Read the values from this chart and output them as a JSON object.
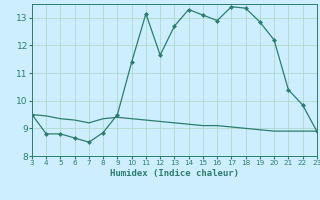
{
  "x_values": [
    3,
    4,
    5,
    6,
    7,
    8,
    9,
    10,
    11,
    12,
    13,
    14,
    15,
    16,
    17,
    18,
    19,
    20,
    21,
    22,
    23
  ],
  "line1_y": [
    9.5,
    8.8,
    8.8,
    8.65,
    8.5,
    8.85,
    9.5,
    11.4,
    13.15,
    11.65,
    12.7,
    13.3,
    13.1,
    12.9,
    13.4,
    13.35,
    12.85,
    12.2,
    10.4,
    9.85,
    8.9
  ],
  "line2_y": [
    9.5,
    9.45,
    9.35,
    9.3,
    9.2,
    9.35,
    9.4,
    9.35,
    9.3,
    9.25,
    9.2,
    9.15,
    9.1,
    9.1,
    9.05,
    9.0,
    8.95,
    8.9,
    8.9,
    8.9,
    8.9
  ],
  "line_color": "#2d7d6e",
  "bg_color": "#cceeff",
  "grid_color": "#b0d8cc",
  "xlabel": "Humidex (Indice chaleur)",
  "xlim": [
    3,
    23
  ],
  "ylim": [
    8,
    13.5
  ],
  "yticks": [
    8,
    9,
    10,
    11,
    12,
    13
  ],
  "xticks": [
    3,
    4,
    5,
    6,
    7,
    8,
    9,
    10,
    11,
    12,
    13,
    14,
    15,
    16,
    17,
    18,
    19,
    20,
    21,
    22,
    23
  ]
}
